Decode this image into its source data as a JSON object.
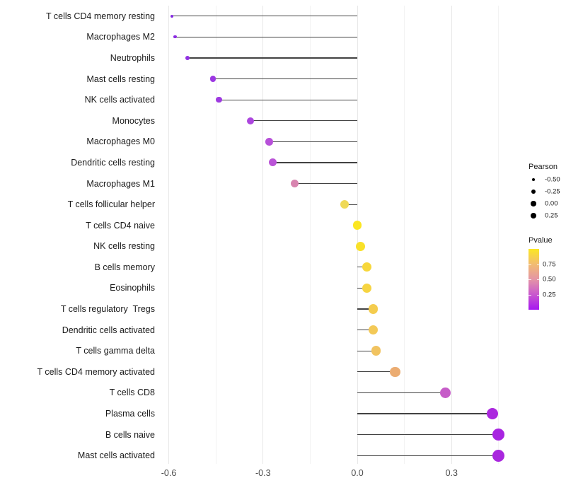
{
  "chart_data": {
    "type": "lollipop",
    "orientation": "horizontal",
    "xlabel": "",
    "ylabel": "",
    "xlim": [
      -0.626,
      0.484
    ],
    "grid": "on",
    "x_ticks": [
      {
        "value": -0.6,
        "label": "-0.6"
      },
      {
        "value": -0.3,
        "label": "-0.3"
      },
      {
        "value": 0.0,
        "label": "0.0"
      },
      {
        "value": 0.3,
        "label": "0.3"
      }
    ],
    "minor_gridlines": [
      -0.45,
      -0.15,
      0.15,
      0.45
    ],
    "baseline": 0.0,
    "rows": [
      {
        "label": "T cells CD4 memory resting",
        "pearson": -0.59,
        "dot_color": "#8429E2",
        "dot_r": 2.0
      },
      {
        "label": "Macrophages M2",
        "pearson": -0.58,
        "dot_color": "#8B2BE2",
        "dot_r": 2.1
      },
      {
        "label": "Neutrophils",
        "pearson": -0.54,
        "dot_color": "#9232E3",
        "dot_r": 2.9
      },
      {
        "label": "Mast cells resting",
        "pearson": -0.46,
        "dot_color": "#9C38E2",
        "dot_r": 4.1
      },
      {
        "label": "NK cells activated",
        "pearson": -0.44,
        "dot_color": "#9E3AE1",
        "dot_r": 4.3
      },
      {
        "label": "Monocytes",
        "pearson": -0.34,
        "dot_color": "#AC46DE",
        "dot_r": 5.1
      },
      {
        "label": "Macrophages M0",
        "pearson": -0.28,
        "dot_color": "#B750D9",
        "dot_r": 5.3
      },
      {
        "label": "Dendritic cells resting",
        "pearson": -0.27,
        "dot_color": "#BA54D7",
        "dot_r": 5.5
      },
      {
        "label": "Macrophages M1",
        "pearson": -0.2,
        "dot_color": "#D884AF",
        "dot_r": 5.7
      },
      {
        "label": "T cells follicular helper",
        "pearson": -0.04,
        "dot_color": "#EFD957",
        "dot_r": 6.2
      },
      {
        "label": "T cells CD4 naive",
        "pearson": 0.0,
        "dot_color": "#FBE621",
        "dot_r": 6.4
      },
      {
        "label": "NK cells resting",
        "pearson": 0.01,
        "dot_color": "#F9E129",
        "dot_r": 6.4
      },
      {
        "label": "B cells memory",
        "pearson": 0.03,
        "dot_color": "#F7D73B",
        "dot_r": 6.5
      },
      {
        "label": "Eosinophils",
        "pearson": 0.03,
        "dot_color": "#F6D441",
        "dot_r": 6.5
      },
      {
        "label": "T cells regulatory  Tregs",
        "pearson": 0.05,
        "dot_color": "#F4CC4E",
        "dot_r": 6.7
      },
      {
        "label": "Dendritic cells activated",
        "pearson": 0.05,
        "dot_color": "#F3C957",
        "dot_r": 6.7
      },
      {
        "label": "T cells gamma delta",
        "pearson": 0.06,
        "dot_color": "#F1C360",
        "dot_r": 6.8
      },
      {
        "label": "T cells CD4 memory activated",
        "pearson": 0.12,
        "dot_color": "#EBAC72",
        "dot_r": 7.2
      },
      {
        "label": "T cells CD8",
        "pearson": 0.28,
        "dot_color": "#C65CC8",
        "dot_r": 7.7
      },
      {
        "label": "Plasma cells",
        "pearson": 0.43,
        "dot_color": "#AB28DE",
        "dot_r": 8.3
      },
      {
        "label": "B cells naive",
        "pearson": 0.45,
        "dot_color": "#A825E1",
        "dot_r": 8.4
      },
      {
        "label": "Mast cells activated",
        "pearson": 0.45,
        "dot_color": "#A927DE",
        "dot_r": 8.5
      }
    ]
  },
  "legend": {
    "size": {
      "title": "Pearson",
      "items": [
        {
          "label": "-0.50",
          "r": 2.3
        },
        {
          "label": "-0.25",
          "r": 2.9
        },
        {
          "label": "0.00",
          "r": 3.7
        },
        {
          "label": "0.25",
          "r": 4.2
        }
      ]
    },
    "color": {
      "title": "Pvalue",
      "gradient_stops": [
        "#FBE723",
        "#F2BC71",
        "#E495A6",
        "#C958CE",
        "#A617F0"
      ],
      "ticks": [
        {
          "label": "0.75",
          "frac_from_top": 0.25
        },
        {
          "label": "0.50",
          "frac_from_top": 0.5
        },
        {
          "label": "0.25",
          "frac_from_top": 0.75
        }
      ]
    }
  },
  "colors": {
    "stem": "#424242",
    "grid_major": "#e8e8e8",
    "grid_minor": "#f3f3f3",
    "background": "#ffffff"
  }
}
